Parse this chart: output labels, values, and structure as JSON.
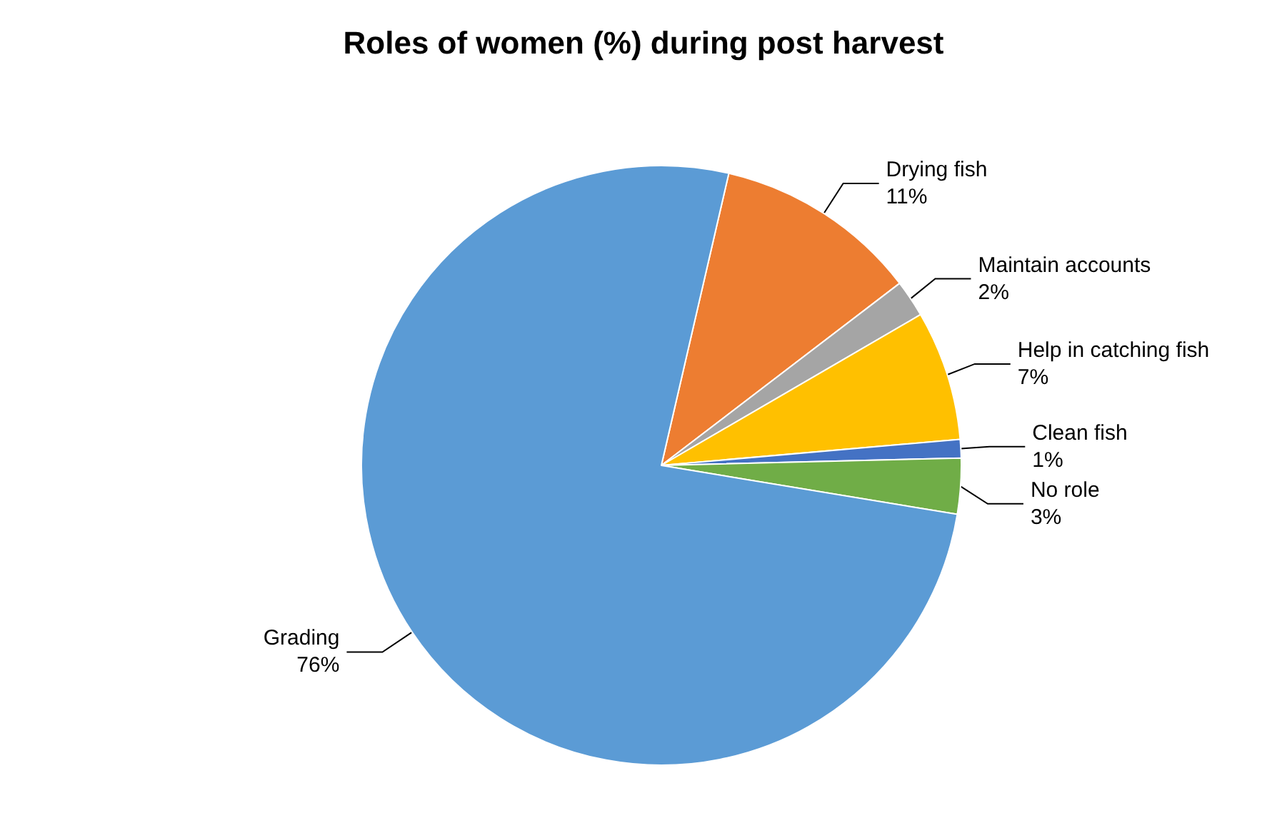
{
  "chart_data": {
    "type": "pie",
    "title": "Roles of women (%) during post harvest",
    "categories": [
      "Drying fish",
      "Maintain accounts",
      "Help in catching fish",
      "Clean fish",
      "No role",
      "Grading"
    ],
    "values": [
      11,
      2,
      7,
      1,
      3,
      76
    ],
    "value_labels": [
      "11%",
      "2%",
      "7%",
      "1%",
      "3%",
      "76%"
    ],
    "colors": [
      "#ed7d31",
      "#a5a5a5",
      "#ffc000",
      "#4472c4",
      "#70ad47",
      "#5b9bd5"
    ]
  }
}
